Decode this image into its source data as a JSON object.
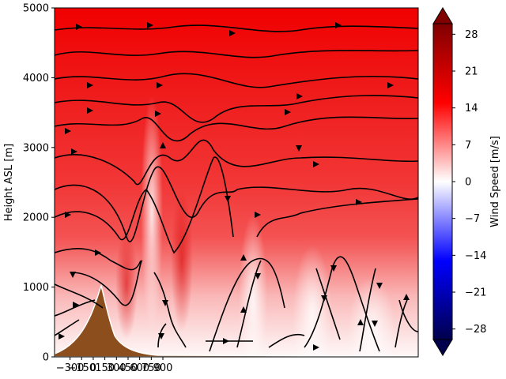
{
  "chart_data": {
    "type": "heatmap",
    "title": "",
    "xlabel": "",
    "ylabel": "Height ASL [m]",
    "x_ticks": [
      -300,
      -150,
      0,
      150,
      300,
      450,
      600,
      750,
      900
    ],
    "x_tick_labels": [
      "−300",
      "−150",
      "0",
      "150",
      "300",
      "450",
      "600",
      "750",
      "900"
    ],
    "x_range": [
      -500,
      4200
    ],
    "ylim": [
      0,
      5000
    ],
    "y_ticks": [
      0,
      1000,
      2000,
      3000,
      4000,
      5000
    ],
    "y_tick_labels": [
      "0",
      "1000",
      "2000",
      "3000",
      "4000",
      "5000"
    ],
    "colorbar": {
      "label": "Wind Speed [m/s]",
      "range": [
        -30,
        30
      ],
      "extend": "both",
      "colormap": "seismic",
      "ticks": [
        -28,
        -21,
        -14,
        -7,
        0,
        7,
        14,
        21,
        28
      ],
      "tick_labels": [
        "−28",
        "−21",
        "−14",
        "−7",
        "0",
        "7",
        "14",
        "21",
        "28"
      ]
    },
    "terrain": {
      "color": "#8b4e1c",
      "peak_height_m": 1000,
      "peak_x": 0
    },
    "colors": {
      "high_wind": "#ff0000",
      "low_wind": "#ffffff",
      "negative_wind": "#00008b",
      "streamline": "#000000"
    }
  }
}
